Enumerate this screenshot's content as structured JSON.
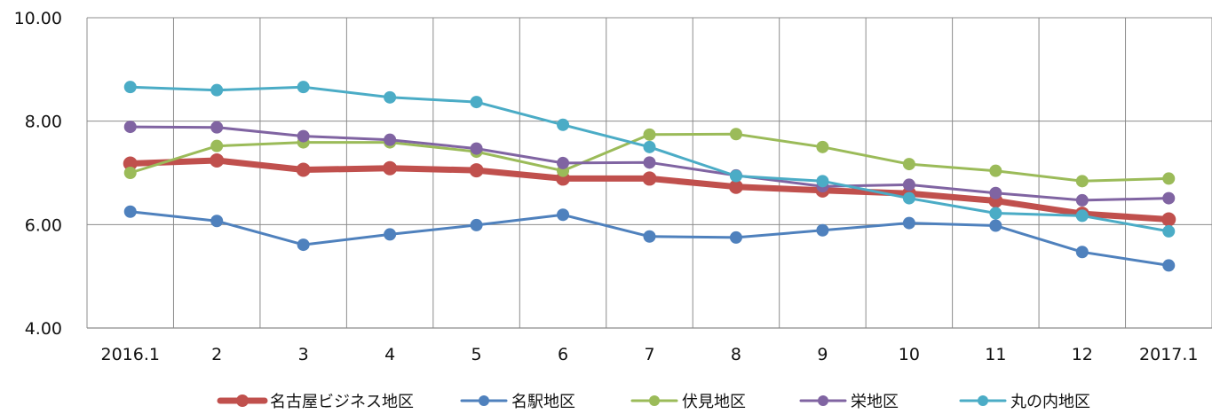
{
  "chart_data": {
    "type": "line",
    "title": "",
    "xlabel": "",
    "ylabel": "",
    "categories": [
      "2016.1",
      "2",
      "3",
      "4",
      "5",
      "6",
      "7",
      "8",
      "9",
      "10",
      "11",
      "12",
      "2017.1"
    ],
    "ylim": [
      4,
      10
    ],
    "yticks": [
      "4.00",
      "6.00",
      "8.00",
      "10.00"
    ],
    "grid": true,
    "legend_position": "bottom",
    "series": [
      {
        "name": "名古屋ビジネス地区",
        "color": "#C0504D",
        "thick": true,
        "values": [
          7.18,
          7.24,
          7.06,
          7.09,
          7.05,
          6.89,
          6.89,
          6.73,
          6.66,
          6.6,
          6.46,
          6.21,
          6.1
        ]
      },
      {
        "name": "名駅地区",
        "color": "#4F81BD",
        "thick": false,
        "values": [
          6.25,
          6.07,
          5.61,
          5.81,
          5.99,
          6.19,
          5.77,
          5.75,
          5.89,
          6.03,
          5.98,
          5.47,
          5.21
        ]
      },
      {
        "name": "伏見地区",
        "color": "#9BBB59",
        "thick": false,
        "values": [
          7.0,
          7.52,
          7.59,
          7.59,
          7.41,
          7.04,
          7.74,
          7.75,
          7.5,
          7.17,
          7.04,
          6.84,
          6.89
        ]
      },
      {
        "name": "栄地区",
        "color": "#8064A2",
        "thick": false,
        "values": [
          7.89,
          7.88,
          7.71,
          7.64,
          7.47,
          7.19,
          7.2,
          6.95,
          6.74,
          6.77,
          6.61,
          6.47,
          6.51
        ]
      },
      {
        "name": "丸の内地区",
        "color": "#4BACC6",
        "thick": false,
        "values": [
          8.66,
          8.6,
          8.66,
          8.46,
          8.37,
          7.93,
          7.5,
          6.94,
          6.84,
          6.51,
          6.22,
          6.17,
          5.87
        ]
      }
    ]
  }
}
